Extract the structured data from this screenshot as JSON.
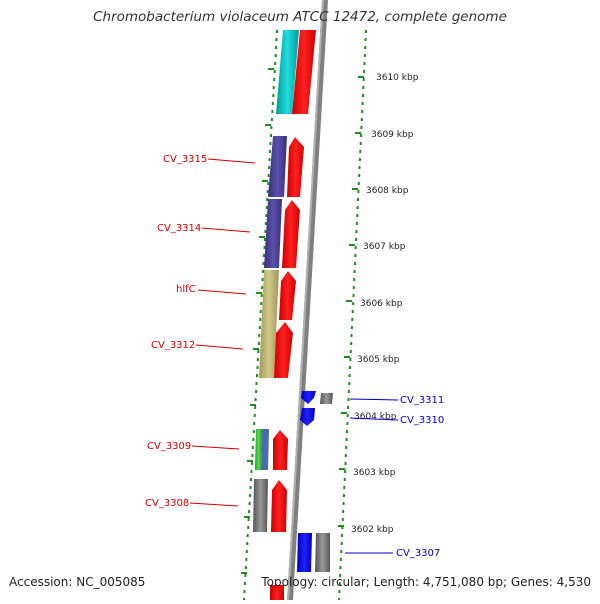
{
  "title": "Chromobacterium violaceum ATCC 12472, complete genome",
  "footer": {
    "accession": "Accession: NC_005085",
    "topology": "Topology: circular; Length: 4,751,080 bp; Genes: 4,530"
  },
  "ticks": [
    "3610 kbp",
    "3609 kbp",
    "3608 kbp",
    "3607 kbp",
    "3606 kbp",
    "3605 kbp",
    "3604 kbp",
    "3603 kbp",
    "3602 kbp"
  ],
  "labels": {
    "left": [
      "CV_3315",
      "CV_3314",
      "hlfC",
      "CV_3312",
      "CV_3309",
      "CV_3308"
    ],
    "right": [
      "CV_3311",
      "CV_3310",
      "CV_3307"
    ]
  },
  "colors": {
    "left_label": "#cc0000",
    "right_label": "#0000cc",
    "backbone": "#808080",
    "dotted": "#228b22",
    "cds": "#ff0000",
    "gene_blue": "#0000ff",
    "cyan": "#00cccc",
    "purple": "#4b3f8f",
    "tan": "#b8b070",
    "green": "#33bb33",
    "grey": "#777777"
  }
}
